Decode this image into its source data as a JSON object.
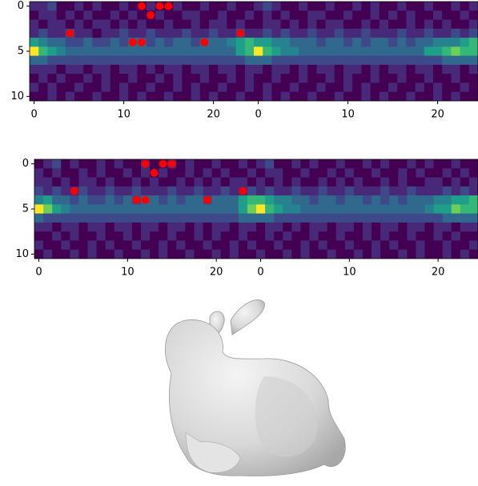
{
  "chart_data": [
    {
      "type": "heatmap",
      "colors": [
        "#440154",
        "#482878",
        "#3e4989",
        "#31688e",
        "#26828e",
        "#1f9e89",
        "#35b779",
        "#6ece58",
        "#b5de2b",
        "#fde725"
      ],
      "zlim": [
        0,
        9
      ],
      "xlim": [
        -0.5,
        49.5
      ],
      "ylim": [
        10.5,
        -0.5
      ],
      "xticks": [
        0,
        10,
        20,
        {
          "value": 25,
          "label": "0"
        },
        {
          "value": 35,
          "label": "10"
        },
        {
          "value": 45,
          "label": "20"
        }
      ],
      "yticks": [
        0,
        5,
        10
      ],
      "z": [
        [
          1,
          1,
          2,
          0,
          0,
          1,
          0,
          1,
          0,
          0,
          1,
          0,
          0,
          1,
          0,
          0,
          1,
          0,
          0,
          1,
          0,
          0,
          1,
          0,
          0,
          1,
          2,
          1,
          0,
          0,
          1,
          0,
          0,
          1,
          0,
          0,
          1,
          0,
          1,
          0,
          0,
          1,
          0,
          0,
          1,
          0,
          0,
          1,
          0,
          1
        ],
        [
          0,
          1,
          1,
          0,
          1,
          0,
          1,
          0,
          0,
          1,
          0,
          1,
          0,
          0,
          1,
          0,
          0,
          1,
          1,
          0,
          0,
          1,
          0,
          0,
          1,
          0,
          1,
          0,
          1,
          0,
          0,
          1,
          1,
          0,
          0,
          1,
          0,
          0,
          1,
          0,
          1,
          0,
          1,
          0,
          0,
          1,
          0,
          0,
          1,
          0
        ],
        [
          1,
          0,
          1,
          1,
          0,
          1,
          0,
          1,
          1,
          0,
          1,
          0,
          1,
          0,
          0,
          1,
          0,
          0,
          1,
          0,
          1,
          1,
          0,
          1,
          0,
          0,
          1,
          1,
          0,
          1,
          0,
          1,
          0,
          1,
          1,
          0,
          0,
          1,
          0,
          1,
          0,
          0,
          1,
          0,
          1,
          0,
          1,
          0,
          0,
          1
        ],
        [
          1,
          2,
          1,
          1,
          2,
          1,
          1,
          0,
          1,
          1,
          2,
          1,
          1,
          2,
          1,
          1,
          1,
          2,
          1,
          1,
          2,
          1,
          1,
          2,
          1,
          1,
          2,
          1,
          2,
          1,
          1,
          2,
          1,
          1,
          2,
          1,
          1,
          2,
          1,
          1,
          1,
          2,
          1,
          1,
          2,
          1,
          1,
          2,
          1,
          2
        ],
        [
          5,
          4,
          3,
          3,
          2,
          2,
          3,
          2,
          2,
          3,
          2,
          3,
          3,
          2,
          3,
          2,
          3,
          3,
          2,
          3,
          3,
          3,
          4,
          5,
          6,
          5,
          5,
          4,
          4,
          3,
          3,
          3,
          2,
          3,
          3,
          2,
          3,
          2,
          3,
          3,
          2,
          3,
          2,
          3,
          3,
          4,
          4,
          4,
          5,
          6
        ],
        [
          9,
          6,
          5,
          4,
          3,
          3,
          3,
          3,
          3,
          3,
          3,
          3,
          3,
          3,
          3,
          3,
          3,
          3,
          3,
          3,
          3,
          3,
          3,
          5,
          6,
          9,
          6,
          5,
          4,
          4,
          3,
          3,
          3,
          3,
          3,
          3,
          3,
          3,
          3,
          3,
          3,
          3,
          3,
          3,
          5,
          5,
          6,
          7,
          6,
          6
        ],
        [
          3,
          3,
          2,
          2,
          2,
          2,
          2,
          2,
          2,
          2,
          2,
          2,
          2,
          2,
          2,
          2,
          2,
          2,
          2,
          2,
          2,
          2,
          2,
          2,
          3,
          3,
          3,
          2,
          2,
          2,
          2,
          2,
          2,
          2,
          2,
          2,
          2,
          2,
          2,
          2,
          2,
          2,
          2,
          2,
          2,
          2,
          3,
          3,
          3,
          3
        ],
        [
          1,
          1,
          1,
          0,
          1,
          1,
          0,
          1,
          1,
          0,
          1,
          1,
          0,
          1,
          0,
          1,
          1,
          0,
          1,
          1,
          0,
          1,
          1,
          0,
          1,
          1,
          0,
          1,
          1,
          0,
          1,
          0,
          1,
          1,
          0,
          1,
          1,
          0,
          1,
          0,
          1,
          1,
          0,
          1,
          1,
          0,
          1,
          1,
          0,
          1
        ],
        [
          0,
          1,
          0,
          1,
          0,
          0,
          1,
          0,
          1,
          0,
          0,
          1,
          0,
          0,
          1,
          0,
          1,
          0,
          0,
          1,
          0,
          0,
          1,
          0,
          1,
          0,
          0,
          1,
          0,
          0,
          1,
          0,
          0,
          1,
          0,
          1,
          0,
          0,
          1,
          0,
          0,
          1,
          0,
          0,
          1,
          0,
          0,
          1,
          0,
          0
        ],
        [
          1,
          0,
          1,
          0,
          0,
          1,
          0,
          0,
          1,
          0,
          1,
          0,
          0,
          1,
          0,
          0,
          1,
          0,
          1,
          0,
          0,
          1,
          0,
          0,
          1,
          0,
          1,
          0,
          0,
          1,
          0,
          0,
          1,
          0,
          0,
          1,
          0,
          1,
          0,
          0,
          1,
          0,
          0,
          1,
          0,
          1,
          0,
          0,
          1,
          0
        ],
        [
          0,
          0,
          1,
          0,
          1,
          0,
          0,
          1,
          0,
          0,
          1,
          0,
          1,
          0,
          0,
          1,
          0,
          0,
          1,
          0,
          1,
          0,
          0,
          1,
          0,
          0,
          1,
          0,
          1,
          0,
          0,
          1,
          0,
          0,
          1,
          0,
          0,
          1,
          0,
          1,
          0,
          0,
          1,
          0,
          0,
          1,
          0,
          1,
          0,
          0
        ]
      ],
      "points": {
        "color": "#ff0000",
        "x": [
          12,
          14,
          15,
          13,
          4,
          23,
          11,
          12,
          19
        ],
        "y": [
          0,
          0,
          0,
          1,
          3,
          3,
          4,
          4,
          4
        ]
      }
    },
    {
      "type": "heatmap",
      "colors": [
        "#440154",
        "#482878",
        "#3e4989",
        "#31688e",
        "#26828e",
        "#1f9e89",
        "#35b779",
        "#6ece58",
        "#b5de2b",
        "#fde725"
      ],
      "zlim": [
        0,
        9
      ],
      "xlim": [
        -0.5,
        49.5
      ],
      "ylim": [
        10.5,
        -0.5
      ],
      "xticks": [
        0,
        10,
        20,
        {
          "value": 25,
          "label": "0"
        },
        {
          "value": 35,
          "label": "10"
        },
        {
          "value": 45,
          "label": "20"
        }
      ],
      "yticks": [
        0,
        5,
        10
      ],
      "z": [
        [
          0,
          1,
          2,
          0,
          1,
          0,
          0,
          1,
          0,
          1,
          0,
          0,
          1,
          0,
          0,
          1,
          0,
          1,
          0,
          0,
          1,
          0,
          0,
          1,
          0,
          1,
          2,
          0,
          0,
          1,
          0,
          1,
          0,
          0,
          1,
          0,
          0,
          1,
          0,
          1,
          0,
          0,
          1,
          0,
          1,
          0,
          0,
          1,
          0,
          0
        ],
        [
          1,
          0,
          1,
          0,
          0,
          1,
          0,
          1,
          0,
          0,
          1,
          0,
          1,
          0,
          1,
          0,
          0,
          1,
          0,
          1,
          0,
          1,
          0,
          0,
          1,
          0,
          1,
          1,
          0,
          0,
          1,
          0,
          0,
          1,
          0,
          1,
          0,
          0,
          1,
          0,
          0,
          1,
          0,
          1,
          0,
          0,
          1,
          0,
          1,
          0
        ],
        [
          1,
          1,
          0,
          1,
          0,
          1,
          1,
          0,
          1,
          0,
          0,
          1,
          0,
          1,
          0,
          0,
          1,
          0,
          1,
          0,
          1,
          0,
          1,
          1,
          0,
          1,
          0,
          1,
          0,
          1,
          0,
          0,
          1,
          0,
          1,
          0,
          1,
          0,
          0,
          1,
          0,
          1,
          0,
          0,
          1,
          1,
          0,
          1,
          0,
          1
        ],
        [
          2,
          1,
          2,
          1,
          1,
          2,
          1,
          1,
          2,
          1,
          1,
          2,
          1,
          1,
          1,
          2,
          1,
          1,
          2,
          1,
          1,
          2,
          1,
          1,
          2,
          1,
          2,
          1,
          1,
          2,
          1,
          1,
          2,
          1,
          1,
          2,
          1,
          1,
          1,
          2,
          1,
          1,
          2,
          1,
          1,
          1,
          2,
          1,
          2,
          1
        ],
        [
          4,
          5,
          3,
          3,
          2,
          3,
          2,
          2,
          3,
          2,
          3,
          2,
          3,
          3,
          2,
          3,
          2,
          3,
          3,
          2,
          3,
          3,
          3,
          5,
          6,
          6,
          5,
          4,
          4,
          3,
          3,
          2,
          3,
          3,
          2,
          3,
          3,
          2,
          3,
          2,
          3,
          2,
          3,
          3,
          3,
          4,
          4,
          5,
          5,
          6
        ],
        [
          9,
          7,
          5,
          4,
          3,
          3,
          3,
          3,
          3,
          3,
          3,
          3,
          3,
          3,
          3,
          3,
          3,
          3,
          3,
          3,
          3,
          3,
          3,
          5,
          7,
          9,
          6,
          5,
          4,
          4,
          3,
          3,
          3,
          3,
          3,
          3,
          3,
          3,
          3,
          3,
          3,
          3,
          3,
          3,
          4,
          5,
          5,
          7,
          6,
          6
        ],
        [
          3,
          2,
          2,
          2,
          2,
          2,
          2,
          2,
          2,
          2,
          2,
          2,
          2,
          2,
          2,
          2,
          2,
          2,
          2,
          2,
          2,
          2,
          2,
          3,
          3,
          3,
          3,
          2,
          2,
          2,
          2,
          2,
          2,
          2,
          2,
          2,
          2,
          2,
          2,
          2,
          2,
          2,
          2,
          2,
          2,
          2,
          3,
          3,
          3,
          3
        ],
        [
          1,
          1,
          0,
          1,
          1,
          0,
          1,
          1,
          0,
          1,
          1,
          0,
          1,
          1,
          0,
          1,
          1,
          0,
          1,
          0,
          1,
          1,
          0,
          1,
          1,
          0,
          1,
          1,
          0,
          1,
          0,
          1,
          1,
          0,
          1,
          1,
          0,
          1,
          0,
          1,
          1,
          0,
          1,
          1,
          0,
          1,
          1,
          0,
          1,
          1
        ],
        [
          0,
          0,
          1,
          0,
          1,
          0,
          0,
          1,
          0,
          0,
          1,
          0,
          1,
          0,
          0,
          1,
          0,
          0,
          1,
          0,
          1,
          0,
          0,
          1,
          0,
          0,
          1,
          0,
          1,
          0,
          0,
          1,
          0,
          0,
          1,
          0,
          0,
          1,
          0,
          1,
          0,
          0,
          1,
          0,
          0,
          1,
          0,
          1,
          0,
          0
        ],
        [
          1,
          0,
          0,
          1,
          0,
          0,
          1,
          0,
          1,
          0,
          0,
          1,
          0,
          0,
          1,
          0,
          1,
          0,
          0,
          1,
          0,
          0,
          1,
          0,
          1,
          0,
          0,
          1,
          0,
          0,
          1,
          0,
          1,
          0,
          0,
          1,
          0,
          0,
          1,
          0,
          1,
          0,
          0,
          1,
          0,
          0,
          1,
          0,
          0,
          1
        ],
        [
          0,
          1,
          0,
          0,
          1,
          0,
          1,
          0,
          0,
          1,
          0,
          0,
          1,
          0,
          1,
          0,
          0,
          1,
          0,
          0,
          1,
          0,
          1,
          0,
          0,
          1,
          0,
          0,
          1,
          0,
          1,
          0,
          0,
          1,
          0,
          0,
          1,
          0,
          1,
          0,
          0,
          1,
          0,
          1,
          0,
          0,
          1,
          0,
          1,
          0
        ]
      ],
      "points": {
        "color": "#ff0000",
        "x": [
          12,
          14,
          15,
          13,
          4,
          23,
          11,
          12,
          19
        ],
        "y": [
          0,
          0,
          0,
          1,
          3,
          3,
          4,
          4,
          4
        ]
      }
    }
  ]
}
